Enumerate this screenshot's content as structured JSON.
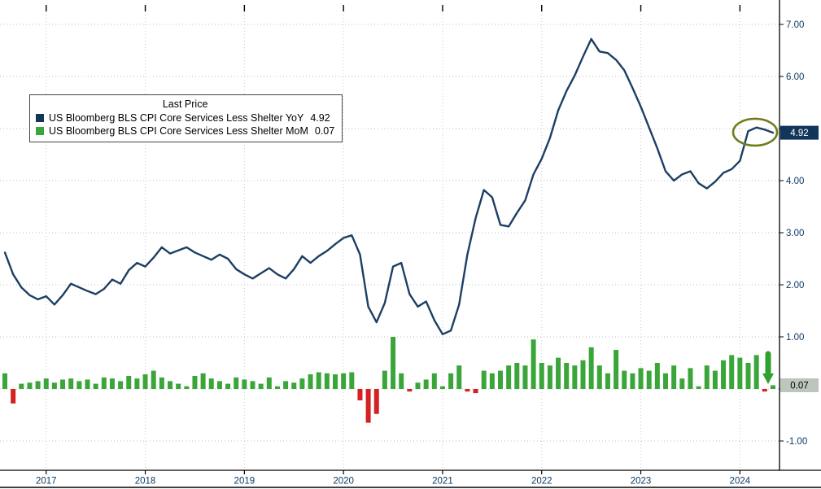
{
  "legend": {
    "title": "Last Price",
    "items": [
      {
        "label": "US Bloomberg BLS CPI Core Services Less Shelter YoY",
        "value": "4.92",
        "color": "#12365a"
      },
      {
        "label": "US Bloomberg BLS CPI Core Services Less Shelter MoM",
        "value": "0.07",
        "color": "#3aa63a"
      }
    ]
  },
  "chart_data": {
    "type": "line+bar",
    "title": "",
    "frequency": "monthly",
    "x_start": "2016-08",
    "x_end": "2024-05",
    "x_year_labels": [
      "2017",
      "2018",
      "2019",
      "2020",
      "2021",
      "2022",
      "2023",
      "2024"
    ],
    "y_ticks": [
      {
        "v": 7,
        "label": "7.00"
      },
      {
        "v": 6,
        "label": "6.00"
      },
      {
        "v": 5,
        "label": ""
      },
      {
        "v": 4,
        "label": "4.00"
      },
      {
        "v": 3,
        "label": "3.00"
      },
      {
        "v": 2,
        "label": "2.00"
      },
      {
        "v": 1,
        "label": "1.00"
      },
      {
        "v": 0,
        "label": ""
      },
      {
        "v": -1,
        "label": "-1.00"
      }
    ],
    "ylim": [
      -1.55,
      7.35
    ],
    "grid": "dotted",
    "legend_position": "top-left",
    "series": [
      {
        "name": "US Bloomberg BLS CPI Core Services Less Shelter YoY",
        "type": "line",
        "color": "#1c3f63",
        "last_price": 4.92,
        "values": [
          2.62,
          2.2,
          1.95,
          1.8,
          1.72,
          1.78,
          1.62,
          1.8,
          2.02,
          1.95,
          1.88,
          1.82,
          1.92,
          2.1,
          2.02,
          2.28,
          2.42,
          2.35,
          2.52,
          2.72,
          2.6,
          2.66,
          2.72,
          2.62,
          2.55,
          2.48,
          2.58,
          2.5,
          2.3,
          2.2,
          2.12,
          2.22,
          2.32,
          2.2,
          2.12,
          2.3,
          2.55,
          2.42,
          2.55,
          2.65,
          2.78,
          2.9,
          2.95,
          2.58,
          1.58,
          1.28,
          1.65,
          2.35,
          2.42,
          1.82,
          1.58,
          1.68,
          1.32,
          1.05,
          1.12,
          1.62,
          2.58,
          3.28,
          3.82,
          3.68,
          3.15,
          3.12,
          3.38,
          3.62,
          4.12,
          4.42,
          4.82,
          5.35,
          5.72,
          6.02,
          6.38,
          6.72,
          6.48,
          6.45,
          6.32,
          6.12,
          5.78,
          5.42,
          5.02,
          4.62,
          4.18,
          4.0,
          4.12,
          4.18,
          3.95,
          3.85,
          3.98,
          4.15,
          4.22,
          4.38,
          4.95,
          5.02,
          4.98,
          4.92
        ]
      },
      {
        "name": "US Bloomberg BLS CPI Core Services Less Shelter MoM",
        "type": "bar",
        "color_positive": "#3aa63a",
        "color_negative": "#d42222",
        "last_price": 0.07,
        "values": [
          0.3,
          -0.28,
          0.1,
          0.12,
          0.15,
          0.2,
          0.12,
          0.18,
          0.2,
          0.15,
          0.18,
          0.1,
          0.22,
          0.2,
          0.15,
          0.25,
          0.2,
          0.28,
          0.35,
          0.22,
          0.15,
          0.1,
          0.05,
          0.25,
          0.3,
          0.2,
          0.15,
          0.1,
          0.22,
          0.18,
          0.15,
          0.1,
          0.22,
          0.05,
          0.15,
          0.12,
          0.2,
          0.28,
          0.32,
          0.3,
          0.28,
          0.3,
          0.32,
          -0.22,
          -0.65,
          -0.48,
          0.35,
          1.0,
          0.3,
          -0.05,
          0.12,
          0.18,
          0.3,
          0.05,
          0.3,
          0.45,
          -0.05,
          -0.08,
          0.35,
          0.3,
          0.35,
          0.45,
          0.5,
          0.45,
          0.95,
          0.5,
          0.45,
          0.6,
          0.5,
          0.45,
          0.55,
          0.8,
          0.45,
          0.3,
          0.75,
          0.35,
          0.3,
          0.4,
          0.35,
          0.5,
          0.3,
          0.45,
          0.2,
          0.4,
          0.05,
          0.45,
          0.35,
          0.55,
          0.65,
          0.6,
          0.5,
          0.65,
          -0.05,
          0.07
        ]
      }
    ],
    "last_price_badges": [
      {
        "value": "4.92",
        "v": 4.92,
        "bg": "#12365a",
        "fg": "#ffffff"
      },
      {
        "value": "0.07",
        "v": 0.07,
        "bg": "#bcc6bc",
        "fg": "#000000"
      }
    ],
    "annotations": [
      {
        "type": "ellipse",
        "note": "olive circle around latest YoY level",
        "color": "#6e7c1a"
      },
      {
        "type": "down-arrow",
        "note": "green arrow pointing down at latest MoM bar",
        "color": "#2fa12f"
      }
    ]
  }
}
